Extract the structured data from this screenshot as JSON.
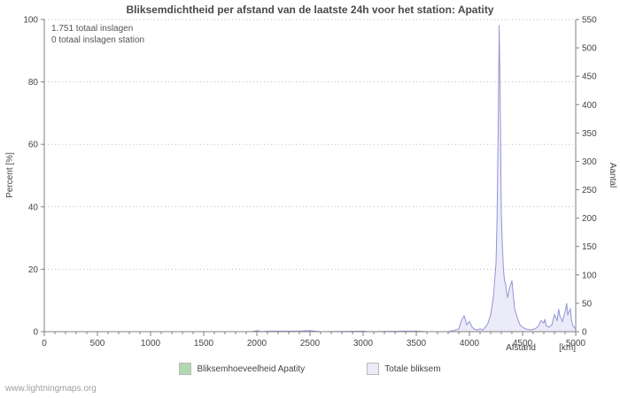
{
  "title": "Bliksemdichtheid per afstand van de laatste 24h voor het station: Apatity",
  "annotations": {
    "line1": "1.751 totaal inslagen",
    "line2": "0 totaal inslagen station"
  },
  "watermark": "www.lightningmaps.org",
  "legend": {
    "items": [
      {
        "label": "Bliksemhoeveelheid Apatity"
      },
      {
        "label": "Totale bliksem"
      }
    ]
  },
  "colors": {
    "axis": "#808080",
    "grid": "#bbbbbb",
    "title": "#4a4a4a"
  },
  "chart_data": {
    "type": "area",
    "title": "Bliksemdichtheid per afstand van de laatste 24h voor het station: Apatity",
    "xlabel": "Afstand",
    "xunit": "[km]",
    "ylabel_left": "Percent  [%]",
    "ylabel_right": "Aantal",
    "xlim": [
      0,
      5000
    ],
    "x_tick_step": 500,
    "x_minor_step": 100,
    "ylim_left": [
      0,
      100
    ],
    "ytick_left": 20,
    "ylim_right": [
      0,
      550
    ],
    "ytick_right": 50,
    "grid": "horizontal-dotted",
    "legend_position": "bottom",
    "x": [
      0,
      500,
      1000,
      1500,
      1950,
      2000,
      2050,
      2100,
      2200,
      2300,
      2400,
      2500,
      2600,
      3000,
      3050,
      3400,
      3500,
      3600,
      3800,
      3850,
      3900,
      3925,
      3950,
      3975,
      4000,
      4025,
      4050,
      4075,
      4100,
      4125,
      4150,
      4175,
      4200,
      4225,
      4250,
      4260,
      4270,
      4280,
      4290,
      4300,
      4310,
      4320,
      4330,
      4340,
      4350,
      4360,
      4375,
      4400,
      4415,
      4425,
      4450,
      4475,
      4500,
      4525,
      4550,
      4575,
      4600,
      4625,
      4650,
      4675,
      4700,
      4710,
      4725,
      4750,
      4775,
      4800,
      4825,
      4840,
      4850,
      4875,
      4900,
      4915,
      4925,
      4950,
      4960,
      4975,
      5000
    ],
    "series": [
      {
        "name": "Bliksemhoeveelheid Apatity",
        "axis": "left",
        "fill_color": "#b2d8b2",
        "stroke_color": "#8cc08c",
        "values": [
          0,
          0,
          0,
          0,
          0,
          0,
          0,
          0,
          0,
          0,
          0,
          0,
          0,
          0,
          0,
          0,
          0,
          0,
          0,
          0,
          0,
          0,
          0,
          0,
          0,
          0,
          0,
          0,
          0,
          0,
          0,
          0,
          0,
          0,
          0,
          0,
          0,
          0,
          0,
          0,
          0,
          0,
          0,
          0,
          0,
          0,
          0,
          0,
          0,
          0,
          0,
          0,
          0,
          0,
          0,
          0,
          0,
          0,
          0,
          0,
          0,
          0,
          0,
          0,
          0,
          0,
          0,
          0,
          0,
          0,
          0,
          0,
          0,
          0,
          0,
          0,
          0
        ]
      },
      {
        "name": "Totale bliksem",
        "axis": "right",
        "fill_color": "#ebebfa",
        "stroke_color": "#9494d6",
        "values": [
          0,
          0,
          0,
          0,
          0,
          2,
          0,
          1,
          1,
          1,
          1,
          2,
          0,
          1,
          0,
          1,
          1,
          0,
          0,
          2,
          5,
          20,
          28,
          12,
          18,
          8,
          4,
          3,
          5,
          3,
          8,
          15,
          30,
          60,
          120,
          200,
          350,
          540,
          400,
          210,
          150,
          110,
          90,
          85,
          70,
          60,
          75,
          90,
          60,
          40,
          25,
          12,
          8,
          5,
          4,
          3,
          4,
          6,
          10,
          20,
          15,
          22,
          10,
          8,
          12,
          30,
          20,
          40,
          28,
          18,
          35,
          50,
          30,
          40,
          20,
          10,
          5
        ]
      }
    ]
  }
}
